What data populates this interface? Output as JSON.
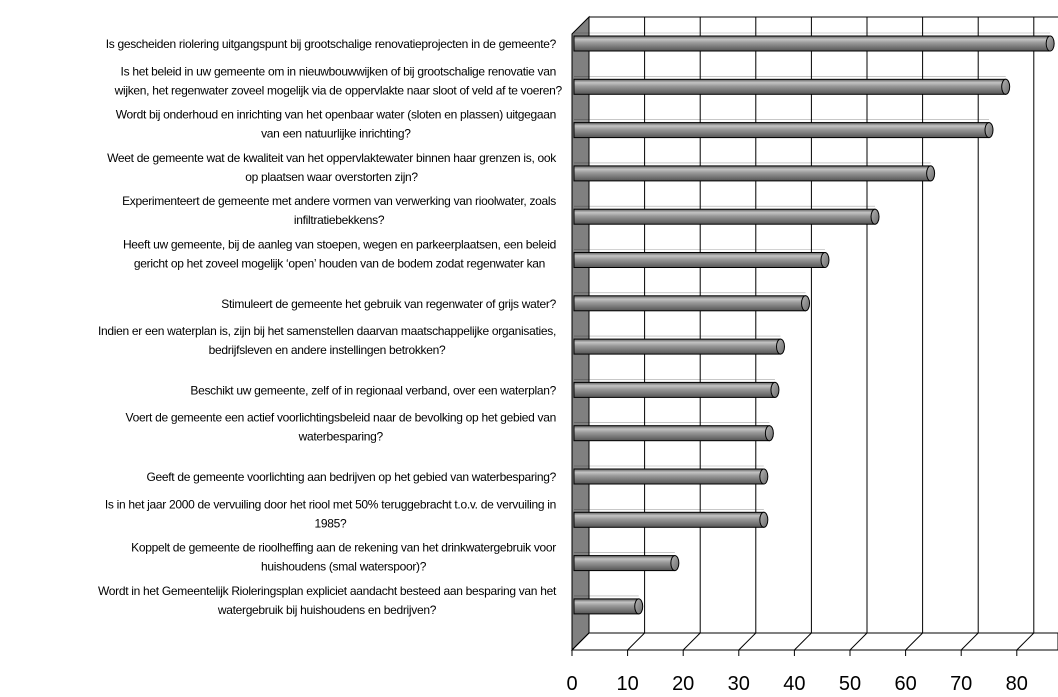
{
  "chart_data": {
    "type": "bar",
    "orientation": "horizontal",
    "style": "3d-cylinder",
    "title": "",
    "xlabel": "",
    "ylabel": "",
    "xlim": [
      0,
      85
    ],
    "x_ticks": [
      "0",
      "10",
      "20",
      "30",
      "40",
      "50",
      "60",
      "70",
      "80"
    ],
    "grid": "vertical",
    "bar_color": "#8c8c8c",
    "wall_color": "#808080",
    "categories": [
      [
        "Is gescheiden riolering uitgangspunt bij grootschalige renovatieprojecten in de gemeente?"
      ],
      [
        "Is het beleid in uw gemeente om in nieuwbouwwijken of bij grootschalige renovatie van",
        "wijken, het regenwater zoveel mogelijk via de oppervlakte naar sloot of veld af te voeren?"
      ],
      [
        "Wordt bij onderhoud en inrichting van het openbaar water (sloten en plassen) uitgegaan",
        "van een natuurlijke inrichting?"
      ],
      [
        "Weet de gemeente wat de kwaliteit van het oppervlaktewater binnen haar grenzen is, ook",
        "op plaatsen waar overstorten zijn?"
      ],
      [
        "Experimenteert de gemeente met andere vormen van verwerking van rioolwater, zoals",
        "infiltratiebekkens?"
      ],
      [
        "Heeft uw gemeente, bij de aanleg van stoepen, wegen en parkeerplaatsen, een beleid",
        "gericht op het zoveel mogelijk ‘open’ houden van de bodem zodat regenwater kan"
      ],
      [
        "Stimuleert de gemeente het gebruik van regenwater of grijs water?"
      ],
      [
        "Indien er een waterplan is, zijn bij het samenstellen daarvan maatschappelijke organisaties,",
        "bedrijfsleven en andere instellingen betrokken?"
      ],
      [
        "Beschikt uw gemeente, zelf of in regionaal verband, over een waterplan?"
      ],
      [
        "Voert de gemeente een actief voorlichtingsbeleid naar de bevolking op het gebied van",
        "waterbesparing?"
      ],
      [
        "Geeft de gemeente voorlichting aan bedrijven op het gebied van waterbesparing?"
      ],
      [
        "Is in het jaar 2000 de vervuiling door het riool met 50% teruggebracht t.o.v. de vervuiling in",
        "1985?"
      ],
      [
        "Koppelt de gemeente de rioolheffing aan de rekening van het drinkwatergebruik voor",
        "huishoudens (smal waterspoor)?"
      ],
      [
        "Wordt in het Gemeentelijk Rioleringsplan expliciet aandacht besteed aan besparing van het",
        "watergebruik bij huishoudens en bedrijven?"
      ]
    ],
    "values": [
      86,
      78,
      75,
      64.5,
      54.5,
      45.5,
      42,
      37.5,
      36.5,
      35.5,
      34.5,
      34.5,
      18.5,
      12
    ]
  }
}
